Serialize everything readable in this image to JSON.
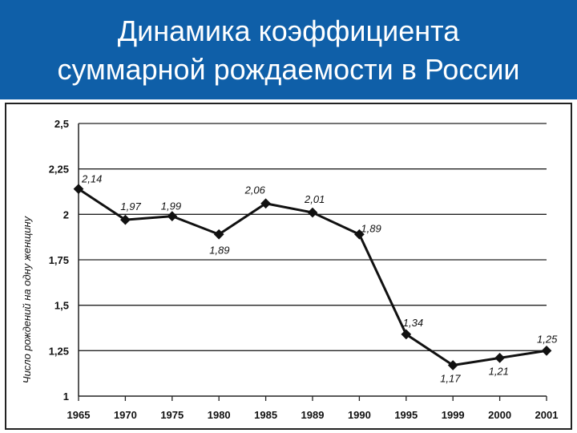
{
  "slide": {
    "title_line_1": "Динамика коэффициента",
    "title_line_2": "суммарной рождаемости в России",
    "header_color": "#0f5fa8"
  },
  "chart_data": {
    "type": "line",
    "title": "Динамика коэффициента суммарной рождаемости в России",
    "xlabel": "",
    "ylabel": "Число рождений на одну женщину",
    "categories": [
      "1965",
      "1970",
      "1975",
      "1980",
      "1985",
      "1989",
      "1990",
      "1995",
      "1999",
      "2000",
      "2001"
    ],
    "values": [
      2.14,
      1.97,
      1.99,
      1.89,
      2.06,
      2.01,
      1.89,
      1.34,
      1.17,
      1.21,
      1.25
    ],
    "data_labels": [
      "2,14",
      "1,97",
      "1,99",
      "1,89",
      "2,06",
      "2,01",
      "1,89",
      "1,34",
      "1,17",
      "1,21",
      "1,25"
    ],
    "y_ticks": [
      1,
      1.25,
      1.5,
      1.75,
      2,
      2.25,
      2.5
    ],
    "y_tick_labels": [
      "1",
      "1,25",
      "1,5",
      "1,75",
      "2",
      "2,25",
      "2,5"
    ],
    "ylim": [
      1,
      2.5
    ],
    "grid": true,
    "line_color": "#111111"
  }
}
